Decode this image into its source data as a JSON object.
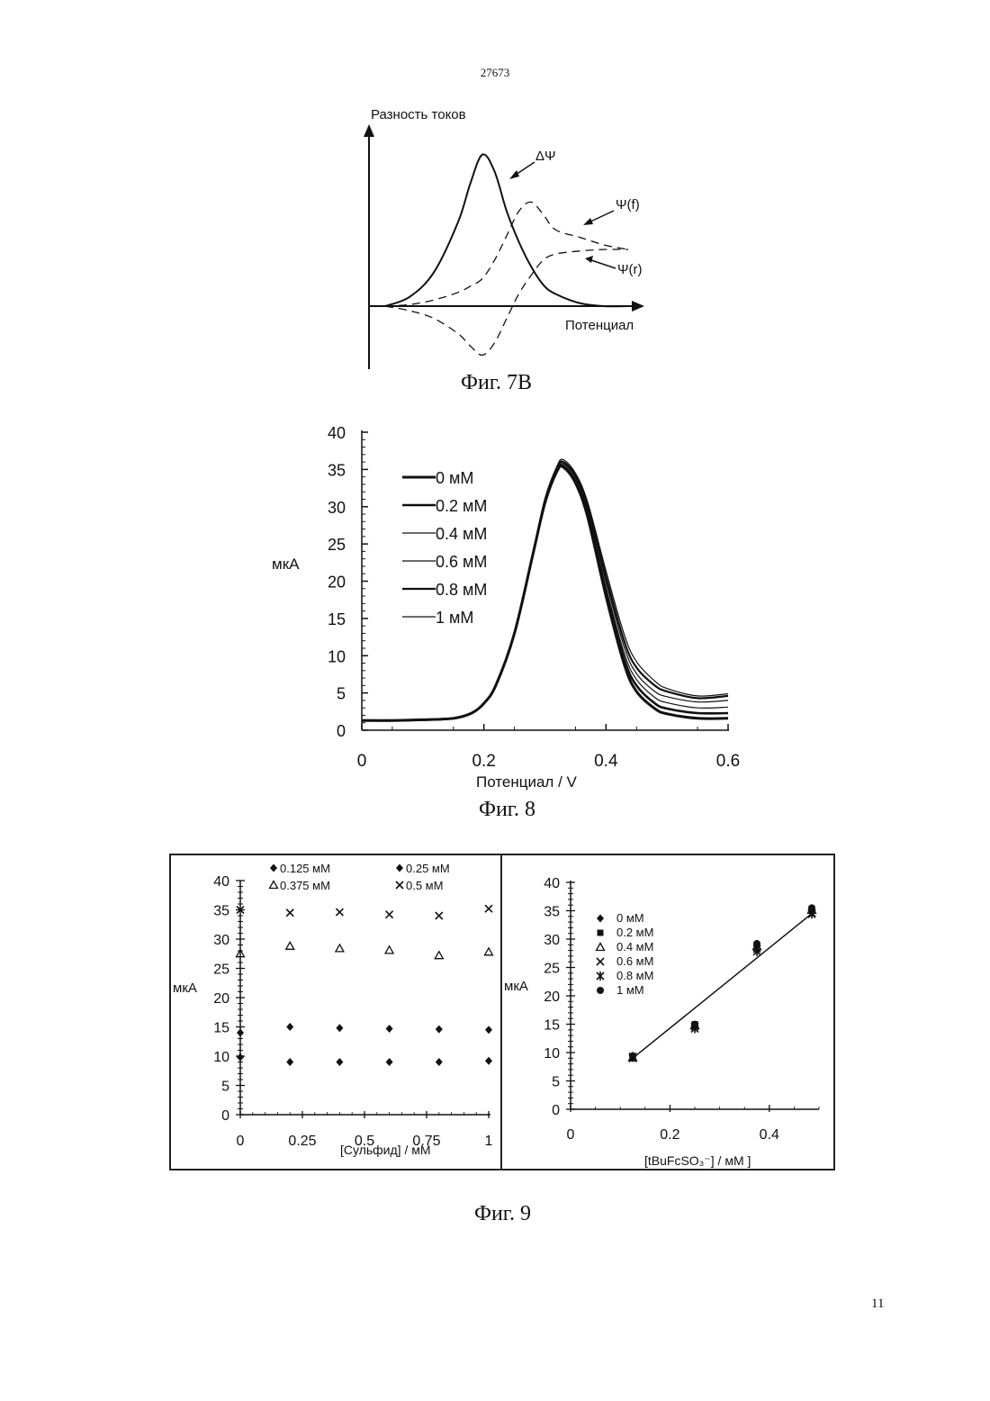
{
  "header": {
    "doc_number": "27673"
  },
  "footer": {
    "page_number": "11"
  },
  "figures": {
    "fig7b": {
      "caption": "Фиг. 7B",
      "ylabel": "Разность токов",
      "xlabel": "Потенциал",
      "curve_labels": {
        "delta": "ΔΨ",
        "forward": "Ψ(f)",
        "reverse": "Ψ(r)"
      }
    },
    "fig8": {
      "caption": "Фиг. 8",
      "ylabel": "мкА",
      "xlabel": "Потенциал  / V",
      "legend": [
        "0  мМ",
        "0.2 мМ",
        "0.4 мМ",
        "0.6 мМ",
        "0.8 мМ",
        "1 мМ"
      ]
    },
    "fig9": {
      "caption": "Фиг. 9",
      "left": {
        "ylabel": "мкА",
        "xlabel": "[Сульфид] / мМ",
        "legend": [
          "0.125 мМ",
          "0.25 мМ",
          "0.375 мМ",
          "0.5 мМ"
        ]
      },
      "right": {
        "ylabel": "мкА",
        "xlabel": "[tBuFcSO₃⁻] / мМ ]",
        "legend": [
          "0 мМ",
          "0.2 мМ",
          "0.4 мМ",
          "0.6 мМ",
          "0.8 мМ",
          "1 мМ"
        ]
      }
    }
  },
  "chart_data": [
    {
      "type": "line",
      "id": "fig7b",
      "title": "",
      "xlabel": "Потенциал",
      "ylabel": "Разность токов",
      "x": [
        0,
        0.1,
        0.2,
        0.3,
        0.35,
        0.4,
        0.45,
        0.5,
        0.55,
        0.6,
        0.65,
        0.7,
        0.8,
        0.9,
        1.0
      ],
      "series": [
        {
          "name": "ΔΨ",
          "values": [
            0,
            0.06,
            0.22,
            0.55,
            0.8,
            0.99,
            0.88,
            0.62,
            0.42,
            0.26,
            0.14,
            0.08,
            0.02,
            0.0,
            0.0
          ]
        },
        {
          "name": "Ψ(f)",
          "values": [
            0,
            0.01,
            0.04,
            0.09,
            0.13,
            0.18,
            0.3,
            0.46,
            0.62,
            0.68,
            0.6,
            0.5,
            0.45,
            0.4,
            0.37
          ]
        },
        {
          "name": "Ψ(r)",
          "values": [
            0,
            -0.03,
            -0.08,
            -0.18,
            -0.26,
            -0.32,
            -0.24,
            -0.08,
            0.08,
            0.2,
            0.3,
            0.34,
            0.36,
            0.37,
            0.37
          ]
        }
      ]
    },
    {
      "type": "line",
      "id": "fig8",
      "title": "",
      "xlabel": "Потенциал  / V",
      "ylabel": "мкА",
      "xlim": [
        0,
        0.6
      ],
      "ylim": [
        0,
        40
      ],
      "xticks": [
        "0",
        "0.2",
        "0.4",
        "0.6"
      ],
      "yticks": [
        "0",
        "5",
        "10",
        "15",
        "20",
        "25",
        "30",
        "35",
        "40"
      ],
      "legend_position": "top-left",
      "x": [
        0,
        0.05,
        0.1,
        0.15,
        0.18,
        0.2,
        0.22,
        0.25,
        0.28,
        0.3,
        0.32,
        0.33,
        0.35,
        0.37,
        0.4,
        0.43,
        0.45,
        0.48,
        0.5,
        0.55,
        0.6
      ],
      "series": [
        {
          "name": "0  мМ",
          "values": [
            1.3,
            1.3,
            1.4,
            1.6,
            2.3,
            3.6,
            6.1,
            13.0,
            23.5,
            30.5,
            34.8,
            35.3,
            33.2,
            28.6,
            18.0,
            8.8,
            5.2,
            2.9,
            2.2,
            1.6,
            1.6
          ]
        },
        {
          "name": "0.2 мМ",
          "values": [
            1.3,
            1.3,
            1.4,
            1.6,
            2.3,
            3.6,
            6.1,
            13.0,
            23.5,
            30.6,
            34.9,
            35.4,
            33.4,
            28.9,
            18.5,
            9.5,
            6.0,
            3.6,
            2.9,
            2.3,
            2.3
          ]
        },
        {
          "name": "0.4 мМ",
          "values": [
            1.3,
            1.3,
            1.4,
            1.6,
            2.3,
            3.6,
            6.1,
            13.0,
            23.5,
            30.7,
            35.0,
            35.6,
            33.6,
            29.3,
            19.2,
            10.3,
            6.8,
            4.4,
            3.7,
            3.0,
            3.1
          ]
        },
        {
          "name": "0.6 мМ",
          "values": [
            1.3,
            1.3,
            1.4,
            1.6,
            2.3,
            3.6,
            6.1,
            13.0,
            23.5,
            30.8,
            35.1,
            35.8,
            33.9,
            29.7,
            19.9,
            11.1,
            7.6,
            5.2,
            4.5,
            3.8,
            4.0
          ]
        },
        {
          "name": "0.8 мМ",
          "values": [
            1.3,
            1.3,
            1.4,
            1.6,
            2.3,
            3.6,
            6.1,
            13.0,
            23.5,
            30.9,
            35.3,
            36.0,
            34.2,
            30.1,
            20.6,
            11.9,
            8.4,
            6.0,
            5.2,
            4.3,
            4.6
          ]
        },
        {
          "name": "1 мМ",
          "values": [
            1.3,
            1.3,
            1.4,
            1.6,
            2.3,
            3.6,
            6.1,
            13.0,
            23.5,
            31.0,
            35.5,
            36.3,
            34.5,
            30.6,
            21.4,
            12.8,
            9.2,
            6.6,
            5.6,
            4.6,
            4.9
          ]
        }
      ]
    },
    {
      "type": "scatter",
      "id": "fig9-left",
      "title": "",
      "xlabel": "[Сульфид] / мМ",
      "ylabel": "мкА",
      "xlim": [
        0,
        1
      ],
      "ylim": [
        0,
        40
      ],
      "xticks": [
        "0",
        "0.25",
        "0.5",
        "0.75",
        "1"
      ],
      "yticks": [
        "0",
        "5",
        "10",
        "15",
        "20",
        "25",
        "30",
        "35",
        "40"
      ],
      "legend_position": "top",
      "x": [
        0,
        0.2,
        0.4,
        0.6,
        0.8,
        1.0
      ],
      "series": [
        {
          "name": "0.125 мМ",
          "marker": "diamond",
          "values": [
            9.8,
            9.0,
            9.0,
            9.0,
            9.0,
            9.2
          ]
        },
        {
          "name": "0.25 мМ",
          "marker": "diamond",
          "values": [
            14.0,
            15.0,
            14.8,
            14.7,
            14.6,
            14.5
          ]
        },
        {
          "name": "0.375 мМ",
          "marker": "triangle",
          "values": [
            27.5,
            28.8,
            28.4,
            28.1,
            27.2,
            27.8
          ]
        },
        {
          "name": "0.5 мМ",
          "marker": "x",
          "values": [
            35.0,
            34.5,
            34.6,
            34.2,
            34.0,
            35.2
          ]
        }
      ]
    },
    {
      "type": "scatter",
      "id": "fig9-right",
      "title": "",
      "xlabel": "[tBuFcSO₃⁻] / мМ ]",
      "ylabel": "мкА",
      "xlim": [
        0,
        0.5
      ],
      "ylim": [
        0,
        40
      ],
      "xticks": [
        "0",
        "0.2",
        "0.4"
      ],
      "yticks": [
        "0",
        "5",
        "10",
        "15",
        "20",
        "25",
        "30",
        "35",
        "40"
      ],
      "legend_position": "left",
      "x": [
        0.125,
        0.25,
        0.375,
        0.5
      ],
      "series": [
        {
          "name": "0 мМ",
          "marker": "diamond",
          "values": [
            9.0,
            14.5,
            28.0,
            35.0
          ]
        },
        {
          "name": "0.2 мМ",
          "marker": "square",
          "values": [
            9.2,
            15.0,
            29.0,
            35.3
          ]
        },
        {
          "name": "0.4 мМ",
          "marker": "triangle",
          "values": [
            9.1,
            14.8,
            28.7,
            35.1
          ]
        },
        {
          "name": "0.6 мМ",
          "marker": "x",
          "values": [
            9.0,
            14.6,
            28.3,
            34.6
          ]
        },
        {
          "name": "0.8 мМ",
          "marker": "asterisk",
          "values": [
            9.3,
            14.2,
            27.8,
            34.4
          ]
        },
        {
          "name": "1 мМ",
          "marker": "circle",
          "values": [
            9.4,
            14.9,
            29.2,
            35.5
          ]
        }
      ],
      "fit_line": {
        "x": [
          0.125,
          0.5
        ],
        "y": [
          9.0,
          34.5
        ]
      }
    }
  ]
}
